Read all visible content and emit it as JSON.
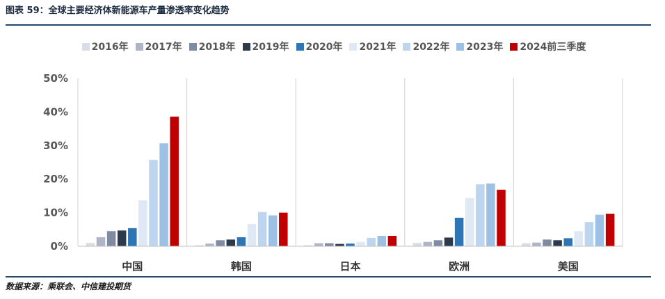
{
  "header": {
    "title": "图表 59：全球主要经济体新能源车产量渗透率变化趋势"
  },
  "source": "数据来源：乘联会、中信建投期货",
  "chart_data": {
    "type": "bar",
    "categories": [
      "中国",
      "韩国",
      "日本",
      "欧洲",
      "美国"
    ],
    "y_ticks": [
      "0%",
      "10%",
      "20%",
      "30%",
      "40%",
      "50%"
    ],
    "ylim": [
      0,
      50
    ],
    "unit": "%",
    "legend_position": "top",
    "grid": false,
    "series": [
      {
        "name": "2016年",
        "color": "#d9dde6",
        "values": [
          1.0,
          0.3,
          0.3,
          1.0,
          0.9
        ]
      },
      {
        "name": "2017年",
        "color": "#adb5c6",
        "values": [
          2.7,
          0.8,
          0.9,
          1.3,
          1.1
        ]
      },
      {
        "name": "2018年",
        "color": "#7f8ba0",
        "values": [
          4.5,
          1.8,
          0.9,
          1.8,
          2.0
        ]
      },
      {
        "name": "2019年",
        "color": "#2d3a4e",
        "values": [
          4.7,
          2.0,
          0.7,
          2.6,
          1.8
        ]
      },
      {
        "name": "2020年",
        "color": "#2e75b6",
        "values": [
          5.4,
          2.7,
          0.8,
          8.5,
          2.4
        ]
      },
      {
        "name": "2021年",
        "color": "#dee9f5",
        "values": [
          13.7,
          6.6,
          1.3,
          14.4,
          4.5
        ]
      },
      {
        "name": "2022年",
        "color": "#bdd5ee",
        "values": [
          25.7,
          10.2,
          2.5,
          18.5,
          7.2
        ]
      },
      {
        "name": "2023年",
        "color": "#9dc0e5",
        "values": [
          30.7,
          9.2,
          3.1,
          18.7,
          9.4
        ]
      },
      {
        "name": "2024前三季度",
        "color": "#c00000",
        "values": [
          38.6,
          10.0,
          3.1,
          16.8,
          9.7
        ]
      }
    ]
  }
}
